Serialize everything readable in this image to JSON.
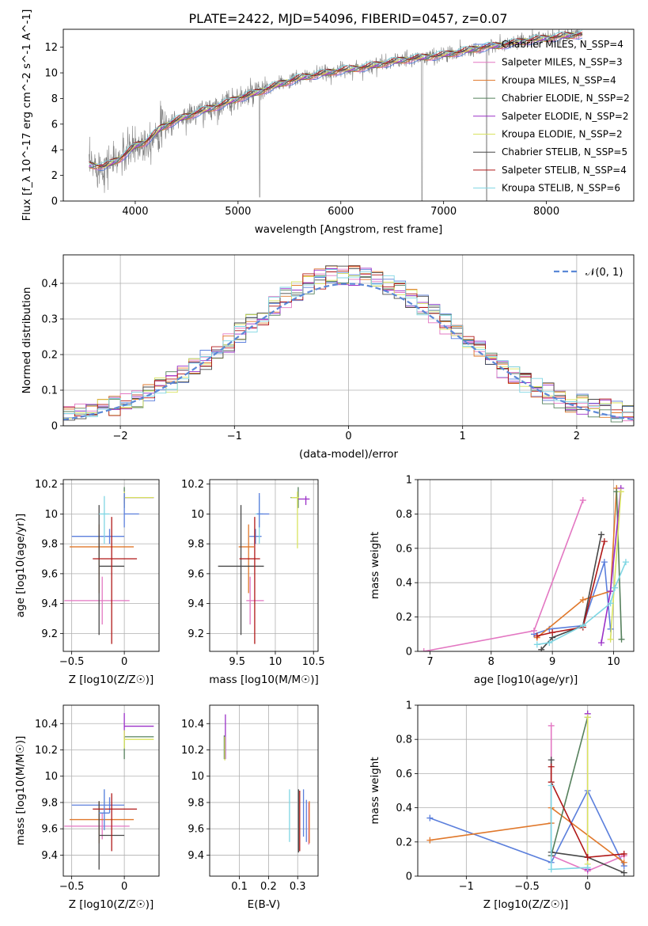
{
  "title": "PLATE=2422, MJD=54096, FIBERID=0457, z=0.07",
  "colors": {
    "spectrum_data": "#808080",
    "grid": "#b0b0b0",
    "models": [
      "#5b7fdc",
      "#e377c2",
      "#e0782b",
      "#55805c",
      "#9b30c8",
      "#d9e35f",
      "#474747",
      "#b01818",
      "#7fd6e3"
    ]
  },
  "chart_data": [
    {
      "id": "spectrum",
      "type": "line",
      "xlabel": "wavelength [Angstrom, rest frame]",
      "ylabel": "Flux [f_λ 10^-17 erg cm^-2 s^-1 A^-1]",
      "xlim": [
        3300,
        8850
      ],
      "ylim": [
        0,
        13.4
      ],
      "xticks": [
        4000,
        5000,
        6000,
        7000,
        8000
      ],
      "yticks": [
        0,
        2,
        4,
        6,
        8,
        10,
        12
      ],
      "grid": false,
      "legend": "right",
      "series": [
        {
          "name": "Chabrier MILES, N_SSP=4"
        },
        {
          "name": "Salpeter MILES, N_SSP=3"
        },
        {
          "name": "Kroupa MILES, N_SSP=4"
        },
        {
          "name": "Chabrier ELODIE, N_SSP=2"
        },
        {
          "name": "Salpeter ELODIE, N_SSP=2"
        },
        {
          "name": "Kroupa ELODIE, N_SSP=2"
        },
        {
          "name": "Chabrier STELIB, N_SSP=5"
        },
        {
          "name": "Salpeter STELIB, N_SSP=4"
        },
        {
          "name": "Kroupa STELIB, N_SSP=6"
        }
      ],
      "continuum": {
        "x": [
          3550,
          3700,
          3850,
          4000,
          4100,
          4250,
          4400,
          4600,
          4800,
          5000,
          5200,
          5400,
          5600,
          5800,
          6000,
          6200,
          6400,
          6600,
          6800,
          7000,
          7200,
          7400,
          7600,
          7800,
          8000,
          8200,
          8350
        ],
        "y": [
          2.8,
          2.7,
          3.3,
          4.3,
          4.6,
          5.7,
          6.3,
          6.9,
          7.4,
          8.0,
          8.5,
          9.1,
          9.6,
          9.9,
          10.2,
          10.4,
          10.7,
          11.0,
          11.2,
          11.4,
          11.7,
          12.0,
          12.2,
          12.5,
          12.7,
          12.9,
          13.0
        ]
      }
    },
    {
      "id": "residuals",
      "type": "histogram",
      "xlabel": "(data-model)/error",
      "ylabel": "Normed distribution",
      "xlim": [
        -2.5,
        2.5
      ],
      "ylim": [
        0,
        0.48
      ],
      "xticks": [
        -2,
        -1,
        0,
        1,
        2
      ],
      "yticks": [
        0.0,
        0.1,
        0.2,
        0.3,
        0.4
      ],
      "grid": true,
      "legend": "top-right",
      "reference_label": "𝒩(0, 1)",
      "bin_width": 0.1
    },
    {
      "id": "age-vs-Z",
      "type": "errorbar",
      "xlabel": "Z [log10(Z/Z☉)]",
      "ylabel": "age [log10(age/yr)]",
      "xlim": [
        -0.58,
        0.33
      ],
      "ylim": [
        9.08,
        10.23
      ],
      "xticks": [
        -0.5,
        0.0
      ],
      "yticks": [
        9.2,
        9.4,
        9.6,
        9.8,
        10.0,
        10.2
      ],
      "grid": true,
      "points": [
        {
          "x": -0.14,
          "y": 9.85,
          "x_err": [
            0.36,
            0.14
          ],
          "y_err": [
            0.05,
            0.05
          ]
        },
        {
          "x": -0.21,
          "y": 9.42,
          "x_err": [
            0.36,
            0.26
          ],
          "y_err": [
            0.16,
            0.16
          ]
        },
        {
          "x": -0.24,
          "y": 9.78,
          "x_err": [
            0.28,
            0.33
          ],
          "y_err": [
            0.31,
            0.15
          ]
        },
        {
          "x": 0.0,
          "y": 10.11,
          "x_err": [
            0.0,
            0.28
          ],
          "y_err": [
            0.07,
            0.07
          ]
        },
        {
          "x": 0.0,
          "y": 10.11,
          "x_err": [
            0.0,
            0.28
          ],
          "y_err": [
            0.04,
            0.02
          ]
        },
        {
          "x": 0.0,
          "y": 10.11,
          "x_err": [
            0.0,
            0.28
          ],
          "y_err": [
            0.04,
            0.04
          ]
        },
        {
          "x": -0.24,
          "y": 9.65,
          "x_err": [
            0.0,
            0.24
          ],
          "y_err": [
            0.46,
            0.41
          ]
        },
        {
          "x": -0.12,
          "y": 9.7,
          "x_err": [
            0.18,
            0.24
          ],
          "y_err": [
            0.57,
            0.28
          ]
        },
        {
          "x": -0.19,
          "y": 10.0,
          "x_err": [
            0.05,
            0.05
          ],
          "y_err": [
            0.2,
            0.12
          ]
        },
        {
          "x": 0.0,
          "y": 10.0,
          "x_err": [
            0.0,
            0.14
          ],
          "y_err": [
            0.09,
            0.14
          ]
        }
      ]
    },
    {
      "id": "age-vs-mass",
      "type": "errorbar",
      "xlabel": "mass [log10(M/M☉)]",
      "ylabel": "",
      "xlim": [
        9.14,
        10.56
      ],
      "ylim": [
        9.08,
        10.23
      ],
      "xticks": [
        9.5,
        10.0,
        10.5
      ],
      "yticks": [
        9.2,
        9.4,
        9.6,
        9.8,
        10.0,
        10.2
      ],
      "grid": true,
      "points": [
        {
          "x": 9.74,
          "y": 9.85,
          "x_err": [
            0.08,
            0.08
          ],
          "y_err": [
            0.05,
            0.05
          ]
        },
        {
          "x": 9.67,
          "y": 9.42,
          "x_err": [
            0.05,
            0.18
          ],
          "y_err": [
            0.16,
            0.16
          ]
        },
        {
          "x": 9.65,
          "y": 9.78,
          "x_err": [
            0.13,
            0.07
          ],
          "y_err": [
            0.31,
            0.15
          ]
        },
        {
          "x": 10.3,
          "y": 10.11,
          "x_err": [
            0.1,
            0.0
          ],
          "y_err": [
            0.07,
            0.07
          ]
        },
        {
          "x": 10.4,
          "y": 10.1,
          "x_err": [
            0.1,
            0.05
          ],
          "y_err": [
            0.04,
            0.02
          ]
        },
        {
          "x": 10.29,
          "y": 10.11,
          "x_err": [
            0.08,
            0.02
          ],
          "y_err": [
            0.34,
            0.04
          ]
        },
        {
          "x": 9.55,
          "y": 9.65,
          "x_err": [
            0.3,
            0.3
          ],
          "y_err": [
            0.46,
            0.41
          ]
        },
        {
          "x": 9.73,
          "y": 9.7,
          "x_err": [
            0.2,
            0.07
          ],
          "y_err": [
            0.57,
            0.28
          ]
        },
        {
          "x": 9.79,
          "y": 10.0,
          "x_err": [
            0.05,
            0.05
          ],
          "y_err": [
            0.2,
            0.12
          ]
        },
        {
          "x": 9.79,
          "y": 10.0,
          "x_err": [
            0.03,
            0.13
          ],
          "y_err": [
            0.09,
            0.14
          ]
        }
      ]
    },
    {
      "id": "weight-vs-age",
      "type": "line",
      "xlabel": "age [log10(age/yr)]",
      "ylabel": "mass weight",
      "xlim": [
        6.8,
        10.33
      ],
      "ylim": [
        0,
        1.0
      ],
      "xticks": [
        7,
        8,
        9,
        10
      ],
      "yticks": [
        0.0,
        0.2,
        0.4,
        0.6,
        0.8,
        1.0
      ],
      "grid": true,
      "series": [
        {
          "points": [
            [
              8.7,
              0.1
            ],
            [
              8.95,
              0.13
            ],
            [
              9.5,
              0.15
            ],
            [
              9.85,
              0.52
            ],
            [
              9.95,
              0.13
            ]
          ]
        },
        {
          "points": [
            [
              6.9,
              0.0
            ],
            [
              8.7,
              0.12
            ],
            [
              9.5,
              0.88
            ]
          ]
        },
        {
          "points": [
            [
              8.75,
              0.08
            ],
            [
              9.5,
              0.3
            ],
            [
              9.95,
              0.35
            ],
            [
              10.05,
              0.95
            ]
          ]
        },
        {
          "points": [
            [
              10.05,
              0.93
            ],
            [
              10.13,
              0.07
            ]
          ]
        },
        {
          "points": [
            [
              9.8,
              0.05
            ],
            [
              9.95,
              0.35
            ],
            [
              10.12,
              0.95
            ]
          ]
        },
        {
          "points": [
            [
              9.95,
              0.07
            ],
            [
              10.12,
              0.93
            ]
          ]
        },
        {
          "points": [
            [
              8.82,
              0.01
            ],
            [
              9.0,
              0.08
            ],
            [
              9.5,
              0.15
            ],
            [
              9.8,
              0.68
            ]
          ]
        },
        {
          "points": [
            [
              8.75,
              0.09
            ],
            [
              9.0,
              0.11
            ],
            [
              9.5,
              0.14
            ],
            [
              9.85,
              0.64
            ]
          ]
        },
        {
          "points": [
            [
              8.75,
              0.04
            ],
            [
              8.95,
              0.05
            ],
            [
              9.5,
              0.15
            ],
            [
              9.95,
              0.28
            ],
            [
              10.02,
              0.37
            ],
            [
              10.2,
              0.52
            ]
          ]
        }
      ]
    },
    {
      "id": "mass-vs-Z",
      "type": "errorbar",
      "xlabel": "Z [log10(Z/Z☉)]",
      "ylabel": "mass [log10(M/M☉)]",
      "xlim": [
        -0.58,
        0.33
      ],
      "ylim": [
        9.24,
        10.54
      ],
      "xticks": [
        -0.5,
        0.0
      ],
      "yticks": [
        9.4,
        9.6,
        9.8,
        10.0,
        10.2,
        10.4
      ],
      "grid": true,
      "points": [
        {
          "x": -0.14,
          "y": 9.78,
          "x_err": [
            0.36,
            0.14
          ],
          "y_err": [
            0.06,
            0.06
          ]
        },
        {
          "x": -0.21,
          "y": 9.62,
          "x_err": [
            0.36,
            0.26
          ],
          "y_err": [
            0.1,
            0.1
          ]
        },
        {
          "x": -0.24,
          "y": 9.67,
          "x_err": [
            0.28,
            0.33
          ],
          "y_err": [
            0.18,
            0.14
          ]
        },
        {
          "x": 0.0,
          "y": 10.3,
          "x_err": [
            0.0,
            0.28
          ],
          "y_err": [
            0.17,
            0.0
          ]
        },
        {
          "x": 0.0,
          "y": 10.38,
          "x_err": [
            0.0,
            0.28
          ],
          "y_err": [
            0.1,
            0.1
          ]
        },
        {
          "x": 0.0,
          "y": 10.28,
          "x_err": [
            0.0,
            0.28
          ],
          "y_err": [
            0.07,
            0.07
          ]
        },
        {
          "x": -0.24,
          "y": 9.55,
          "x_err": [
            0.0,
            0.24
          ],
          "y_err": [
            0.26,
            0.26
          ]
        },
        {
          "x": -0.12,
          "y": 9.75,
          "x_err": [
            0.18,
            0.24
          ],
          "y_err": [
            0.32,
            0.12
          ]
        },
        {
          "x": -0.19,
          "y": 9.72,
          "x_err": [
            0.05,
            0.05
          ],
          "y_err": [
            0.13,
            0.18
          ]
        },
        {
          "x": -0.19,
          "y": 9.72,
          "x_err": [
            0.05,
            0.05
          ],
          "y_err": [
            0.13,
            0.18
          ]
        }
      ]
    },
    {
      "id": "mass-vs-EBV",
      "type": "errorbar",
      "xlabel": "E(B-V)",
      "ylabel": "",
      "xlim": [
        -0.002,
        0.37
      ],
      "ylim": [
        9.24,
        10.54
      ],
      "xticks": [
        0.1,
        0.2,
        0.3
      ],
      "yticks": [
        9.4,
        9.6,
        9.8,
        10.0,
        10.2,
        10.4
      ],
      "grid": true,
      "points": [
        {
          "x": 0.33,
          "y": 9.66,
          "x_err": [
            0,
            0
          ],
          "y_err": [
            0.16,
            0.16
          ]
        },
        {
          "x": 0.338,
          "y": 9.64,
          "x_err": [
            0,
            0
          ],
          "y_err": [
            0.16,
            0.16
          ]
        },
        {
          "x": 0.34,
          "y": 9.65,
          "x_err": [
            0,
            0
          ],
          "y_err": [
            0.16,
            0.16
          ]
        },
        {
          "x": 0.048,
          "y": 10.22,
          "x_err": [
            0,
            0
          ],
          "y_err": [
            0.09,
            0.09
          ]
        },
        {
          "x": 0.052,
          "y": 10.3,
          "x_err": [
            0,
            0
          ],
          "y_err": [
            0.17,
            0.17
          ]
        },
        {
          "x": 0.05,
          "y": 10.21,
          "x_err": [
            0,
            0
          ],
          "y_err": [
            0.09,
            0.09
          ]
        },
        {
          "x": 0.303,
          "y": 9.66,
          "x_err": [
            0,
            0
          ],
          "y_err": [
            0.24,
            0.24
          ]
        },
        {
          "x": 0.307,
          "y": 9.66,
          "x_err": [
            0,
            0
          ],
          "y_err": [
            0.23,
            0.23
          ]
        },
        {
          "x": 0.272,
          "y": 9.7,
          "x_err": [
            0,
            0
          ],
          "y_err": [
            0.2,
            0.2
          ]
        },
        {
          "x": 0.32,
          "y": 9.72,
          "x_err": [
            0,
            0
          ],
          "y_err": [
            0.18,
            0.18
          ]
        }
      ]
    },
    {
      "id": "weight-vs-Z",
      "type": "line",
      "xlabel": "Z [log10(Z/Z☉)]",
      "ylabel": "mass weight",
      "xlim": [
        -1.4,
        0.38
      ],
      "ylim": [
        0,
        1.0
      ],
      "xticks": [
        -1.0,
        -0.5,
        0.0
      ],
      "yticks": [
        0.0,
        0.2,
        0.4,
        0.6,
        0.8,
        1.0
      ],
      "grid": true,
      "series": [
        {
          "points": [
            [
              -1.3,
              0.34
            ],
            [
              -0.3,
              0.08
            ],
            [
              0.0,
              0.5
            ],
            [
              0.3,
              0.06
            ]
          ]
        },
        {
          "points": [
            [
              -0.3,
              0.88
            ],
            [
              -0.3,
              0.12
            ],
            [
              0.0,
              0.03
            ],
            [
              0.3,
              0.12
            ]
          ]
        },
        {
          "points": [
            [
              -1.3,
              0.21
            ],
            [
              -0.3,
              0.31
            ],
            [
              -0.3,
              0.4
            ],
            [
              0.3,
              0.08
            ]
          ]
        },
        {
          "points": [
            [
              -0.3,
              0.12
            ],
            [
              0.0,
              0.93
            ]
          ]
        },
        {
          "points": [
            [
              0.0,
              0.04
            ],
            [
              0.0,
              0.95
            ]
          ]
        },
        {
          "points": [
            [
              0.0,
              0.93
            ],
            [
              0.0,
              0.07
            ]
          ]
        },
        {
          "points": [
            [
              -0.3,
              0.68
            ],
            [
              -0.3,
              0.14
            ],
            [
              0.0,
              0.11
            ],
            [
              0.3,
              0.02
            ]
          ]
        },
        {
          "points": [
            [
              -0.3,
              0.64
            ],
            [
              -0.3,
              0.55
            ],
            [
              0.0,
              0.11
            ],
            [
              0.3,
              0.13
            ]
          ]
        },
        {
          "points": [
            [
              -0.3,
              0.53
            ],
            [
              -0.3,
              0.04
            ],
            [
              0.0,
              0.05
            ]
          ]
        }
      ]
    }
  ]
}
